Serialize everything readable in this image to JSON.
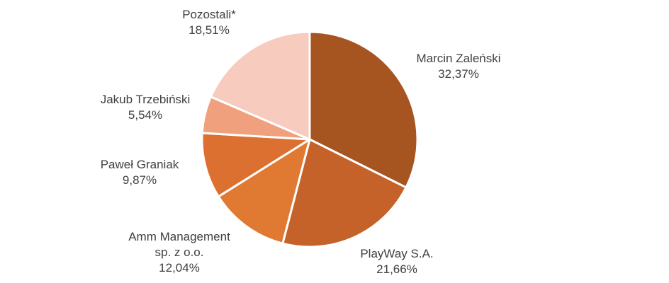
{
  "chart_data": {
    "type": "pie",
    "title": "",
    "slices": [
      {
        "label": [
          "Marcin Zaleński"
        ],
        "value": 32.37,
        "value_label": "32,37%",
        "color": "#a65420"
      },
      {
        "label": [
          "PlayWay S.A."
        ],
        "value": 21.66,
        "value_label": "21,66%",
        "color": "#c4622a"
      },
      {
        "label": [
          "Amm Management",
          "sp. z o.o."
        ],
        "value": 12.04,
        "value_label": "12,04%",
        "color": "#e07a32"
      },
      {
        "label": [
          "Paweł Graniak"
        ],
        "value": 9.87,
        "value_label": "9,87%",
        "color": "#dc7030"
      },
      {
        "label": [
          "Jakub Trzebiński"
        ],
        "value": 5.54,
        "value_label": "5,54%",
        "color": "#f0a07c"
      },
      {
        "label": [
          "Pozostali*"
        ],
        "value": 18.51,
        "value_label": "18,51%",
        "color": "#f7cbbd"
      }
    ]
  }
}
